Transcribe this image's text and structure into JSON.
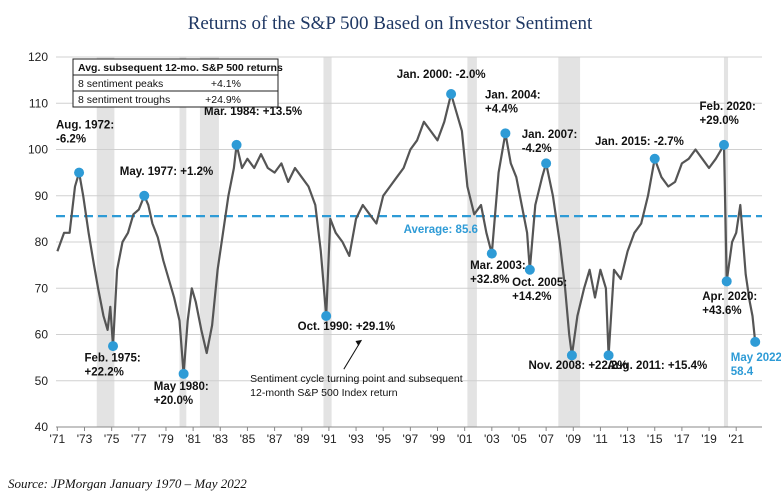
{
  "chart_data": {
    "type": "line",
    "title": "Returns of the S&P 500 Based on Investor Sentiment",
    "source": "Source: JPMorgan January 1970 – May 2022",
    "ylim": [
      40,
      120
    ],
    "yticks": [
      40,
      50,
      60,
      70,
      80,
      90,
      100,
      110,
      120
    ],
    "xlim": [
      1970.9,
      2022.9
    ],
    "xticks": [
      {
        "x": 1971,
        "label": "'71"
      },
      {
        "x": 1973,
        "label": "'73"
      },
      {
        "x": 1975,
        "label": "'75"
      },
      {
        "x": 1977,
        "label": "'77"
      },
      {
        "x": 1979,
        "label": "'79"
      },
      {
        "x": 1981,
        "label": "'81"
      },
      {
        "x": 1983,
        "label": "'83"
      },
      {
        "x": 1985,
        "label": "'85"
      },
      {
        "x": 1987,
        "label": "'87"
      },
      {
        "x": 1989,
        "label": "'89"
      },
      {
        "x": 1991,
        "label": "'91"
      },
      {
        "x": 1993,
        "label": "'93"
      },
      {
        "x": 1995,
        "label": "'95"
      },
      {
        "x": 1997,
        "label": "'97"
      },
      {
        "x": 1999,
        "label": "'99"
      },
      {
        "x": 2001,
        "label": "'01"
      },
      {
        "x": 2003,
        "label": "'03"
      },
      {
        "x": 2005,
        "label": "'05"
      },
      {
        "x": 2007,
        "label": "'07"
      },
      {
        "x": 2009,
        "label": "'09"
      },
      {
        "x": 2011,
        "label": "'11"
      },
      {
        "x": 2013,
        "label": "'13"
      },
      {
        "x": 2015,
        "label": "'15"
      },
      {
        "x": 2017,
        "label": "'17"
      },
      {
        "x": 2019,
        "label": "'19"
      },
      {
        "x": 2021,
        "label": "'21"
      }
    ],
    "grid": true,
    "recessions": [
      [
        1973.9,
        1975.2
      ],
      [
        1980.0,
        1980.5
      ],
      [
        1981.5,
        1982.9
      ],
      [
        1990.6,
        1991.2
      ],
      [
        2001.2,
        2001.9
      ],
      [
        2007.9,
        2009.5
      ],
      [
        2020.1,
        2020.4
      ]
    ],
    "average": {
      "value": 85.6,
      "label": "Average: 85.6",
      "label_x": 1996.5
    },
    "series": [
      {
        "points": [
          [
            1971.0,
            78
          ],
          [
            1971.5,
            82
          ],
          [
            1971.9,
            82
          ],
          [
            1972.3,
            92
          ],
          [
            1972.6,
            95
          ],
          [
            1972.9,
            90
          ],
          [
            1973.3,
            82
          ],
          [
            1973.7,
            75
          ],
          [
            1974.0,
            70
          ],
          [
            1974.4,
            64
          ],
          [
            1974.7,
            61
          ],
          [
            1974.9,
            66
          ],
          [
            1975.1,
            57.5
          ],
          [
            1975.4,
            74
          ],
          [
            1975.8,
            80
          ],
          [
            1976.2,
            82
          ],
          [
            1976.6,
            86
          ],
          [
            1977.0,
            87
          ],
          [
            1977.4,
            90
          ],
          [
            1977.7,
            88
          ],
          [
            1978.0,
            84
          ],
          [
            1978.4,
            81
          ],
          [
            1978.8,
            76
          ],
          [
            1979.2,
            72
          ],
          [
            1979.6,
            68
          ],
          [
            1980.0,
            63
          ],
          [
            1980.3,
            51.5
          ],
          [
            1980.6,
            63
          ],
          [
            1980.9,
            70
          ],
          [
            1981.2,
            67
          ],
          [
            1981.6,
            61
          ],
          [
            1982.0,
            56
          ],
          [
            1982.4,
            62
          ],
          [
            1982.8,
            74
          ],
          [
            1983.2,
            82
          ],
          [
            1983.6,
            90
          ],
          [
            1984.0,
            96
          ],
          [
            1984.2,
            101
          ],
          [
            1984.6,
            96
          ],
          [
            1985.0,
            98
          ],
          [
            1985.5,
            96
          ],
          [
            1986.0,
            99
          ],
          [
            1986.5,
            96
          ],
          [
            1987.0,
            95
          ],
          [
            1987.5,
            97
          ],
          [
            1988.0,
            93
          ],
          [
            1988.5,
            96
          ],
          [
            1989.0,
            94
          ],
          [
            1989.5,
            92
          ],
          [
            1990.0,
            88
          ],
          [
            1990.4,
            78
          ],
          [
            1990.8,
            64
          ],
          [
            1991.1,
            85
          ],
          [
            1991.5,
            82
          ],
          [
            1992.0,
            80
          ],
          [
            1992.5,
            77
          ],
          [
            1993.0,
            85
          ],
          [
            1993.5,
            88
          ],
          [
            1994.0,
            86
          ],
          [
            1994.5,
            84
          ],
          [
            1995.0,
            90
          ],
          [
            1995.5,
            92
          ],
          [
            1996.0,
            94
          ],
          [
            1996.5,
            96
          ],
          [
            1997.0,
            100
          ],
          [
            1997.5,
            102
          ],
          [
            1998.0,
            106
          ],
          [
            1998.5,
            104
          ],
          [
            1999.0,
            102
          ],
          [
            1999.5,
            106
          ],
          [
            2000.0,
            112
          ],
          [
            2000.4,
            108
          ],
          [
            2000.8,
            104
          ],
          [
            2001.2,
            92
          ],
          [
            2001.7,
            86
          ],
          [
            2002.2,
            88
          ],
          [
            2002.6,
            82
          ],
          [
            2003.0,
            77.5
          ],
          [
            2003.5,
            95
          ],
          [
            2004.0,
            103.5
          ],
          [
            2004.4,
            97
          ],
          [
            2004.8,
            94
          ],
          [
            2005.2,
            88
          ],
          [
            2005.6,
            82
          ],
          [
            2005.8,
            74
          ],
          [
            2006.2,
            88
          ],
          [
            2006.7,
            94
          ],
          [
            2007.0,
            97
          ],
          [
            2007.5,
            90
          ],
          [
            2008.0,
            80
          ],
          [
            2008.4,
            70
          ],
          [
            2008.7,
            60
          ],
          [
            2008.9,
            55.5
          ],
          [
            2009.3,
            64
          ],
          [
            2009.8,
            70
          ],
          [
            2010.2,
            74
          ],
          [
            2010.6,
            68
          ],
          [
            2011.0,
            74
          ],
          [
            2011.4,
            70
          ],
          [
            2011.6,
            55.5
          ],
          [
            2012.0,
            74
          ],
          [
            2012.5,
            72
          ],
          [
            2013.0,
            78
          ],
          [
            2013.5,
            82
          ],
          [
            2014.0,
            84
          ],
          [
            2014.5,
            90
          ],
          [
            2015.0,
            98
          ],
          [
            2015.5,
            94
          ],
          [
            2016.0,
            92
          ],
          [
            2016.5,
            93
          ],
          [
            2017.0,
            97
          ],
          [
            2017.5,
            98
          ],
          [
            2018.0,
            100
          ],
          [
            2018.5,
            98
          ],
          [
            2019.0,
            96
          ],
          [
            2019.5,
            98
          ],
          [
            2020.1,
            101
          ],
          [
            2020.3,
            71.5
          ],
          [
            2020.7,
            80
          ],
          [
            2021.0,
            82
          ],
          [
            2021.3,
            88
          ],
          [
            2021.7,
            73
          ],
          [
            2022.0,
            67
          ],
          [
            2022.2,
            64
          ],
          [
            2022.4,
            58.4
          ]
        ]
      }
    ],
    "peaks": [
      [
        1972.6,
        95
      ],
      [
        1977.4,
        90
      ],
      [
        1984.2,
        101
      ],
      [
        2000.0,
        112
      ],
      [
        2004.0,
        103.5
      ],
      [
        2007.0,
        97
      ],
      [
        2015.0,
        98
      ],
      [
        2020.1,
        101
      ]
    ],
    "troughs": [
      [
        1975.1,
        57.5
      ],
      [
        1980.3,
        51.5
      ],
      [
        1990.8,
        64
      ],
      [
        2003.0,
        77.5
      ],
      [
        2005.8,
        74
      ],
      [
        2008.9,
        55.5
      ],
      [
        2011.6,
        55.5
      ],
      [
        2020.3,
        71.5
      ]
    ],
    "current_point": [
      2022.4,
      58.4
    ],
    "annotations": [
      {
        "lines": [
          "Aug. 1972:",
          "-6.2%"
        ],
        "x": 1970.9,
        "y": 104.5
      },
      {
        "lines": [
          "May. 1977: +1.2%"
        ],
        "x": 1975.6,
        "y": 94.5
      },
      {
        "lines": [
          "Mar. 1984: +13.5%"
        ],
        "x": 1981.8,
        "y": 107.5
      },
      {
        "lines": [
          "Jan. 2000: -2.0%"
        ],
        "x": 1996.0,
        "y": 115.5
      },
      {
        "lines": [
          "Jan. 2004:",
          "+4.4%"
        ],
        "x": 2002.5,
        "y": 111
      },
      {
        "lines": [
          "Jan. 2007:",
          "-4.2%"
        ],
        "x": 2005.2,
        "y": 102.5
      },
      {
        "lines": [
          "Jan. 2015: -2.7%"
        ],
        "x": 2010.6,
        "y": 101
      },
      {
        "lines": [
          "Feb. 2020:",
          "+29.0%"
        ],
        "x": 2018.3,
        "y": 108.5
      },
      {
        "lines": [
          "Feb. 1975:",
          "+22.2%"
        ],
        "x": 1973.0,
        "y": 54.2
      },
      {
        "lines": [
          "May 1980:",
          "+20.0%"
        ],
        "x": 1978.1,
        "y": 48
      },
      {
        "lines": [
          "Oct. 1990: +29.1%"
        ],
        "x": 1988.7,
        "y": 61
      },
      {
        "lines": [
          "Mar. 2003:",
          "+32.8%"
        ],
        "x": 2001.4,
        "y": 74.2
      },
      {
        "lines": [
          "Oct. 2005:",
          "+14.2%"
        ],
        "x": 2004.5,
        "y": 70.5
      },
      {
        "lines": [
          "Nov. 2008: +22.2%"
        ],
        "x": 2005.7,
        "y": 52.5
      },
      {
        "lines": [
          "Aug. 2011: +15.4%"
        ],
        "x": 2011.5,
        "y": 52.5
      },
      {
        "lines": [
          "Apr. 2020:",
          "+43.6%"
        ],
        "x": 2018.5,
        "y": 67.5
      }
    ],
    "current_label": {
      "lines": [
        "May 2022:",
        "58.4"
      ],
      "x": 2020.6,
      "y": 54.3
    },
    "note": {
      "lines": [
        "Sentiment cycle turning point and subsequent",
        "12-month S&P 500 Index return"
      ],
      "x": 1985.2,
      "y": 49.7
    },
    "summary_box": {
      "header": "Avg. subsequent 12-mo. S&P 500 returns",
      "rows": [
        {
          "label": "8 sentiment peaks",
          "value": "+4.1%"
        },
        {
          "label": "8 sentiment troughs",
          "value": "+24.9%"
        }
      ]
    }
  }
}
